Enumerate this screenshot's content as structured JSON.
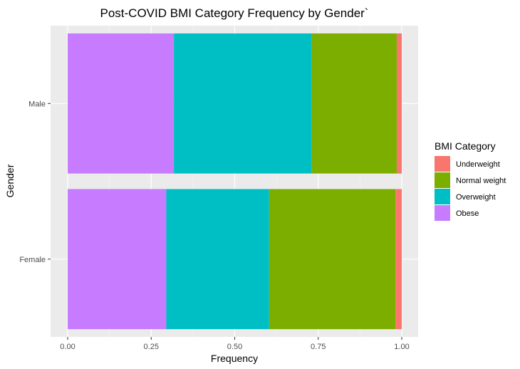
{
  "chart_data": {
    "type": "bar",
    "orientation": "horizontal",
    "stacked": true,
    "title": "Post-COVID BMI Category Frequency by Gender`",
    "xlabel": "Frequency",
    "ylabel": "Gender",
    "xlim": [
      0,
      1
    ],
    "xticks": [
      "0.00",
      "0.25",
      "0.50",
      "0.75",
      "1.00"
    ],
    "xtick_values": [
      0,
      0.25,
      0.5,
      0.75,
      1.0
    ],
    "categories": [
      "Female",
      "Male"
    ],
    "legend": {
      "title": "BMI Category",
      "placement": "right",
      "entries": [
        "Underweight",
        "Normal weight",
        "Overweight",
        "Obese"
      ]
    },
    "series": [
      {
        "name": "Obese",
        "color": "#C77CFF",
        "values": [
          0.295,
          0.318
        ]
      },
      {
        "name": "Overweight",
        "color": "#00BFC4",
        "values": [
          0.308,
          0.412
        ]
      },
      {
        "name": "Normal weight",
        "color": "#7CAE00",
        "values": [
          0.378,
          0.255
        ]
      },
      {
        "name": "Underweight",
        "color": "#F8766D",
        "values": [
          0.019,
          0.015
        ]
      }
    ],
    "grid": true,
    "panel_background": "#EBEBEB"
  }
}
